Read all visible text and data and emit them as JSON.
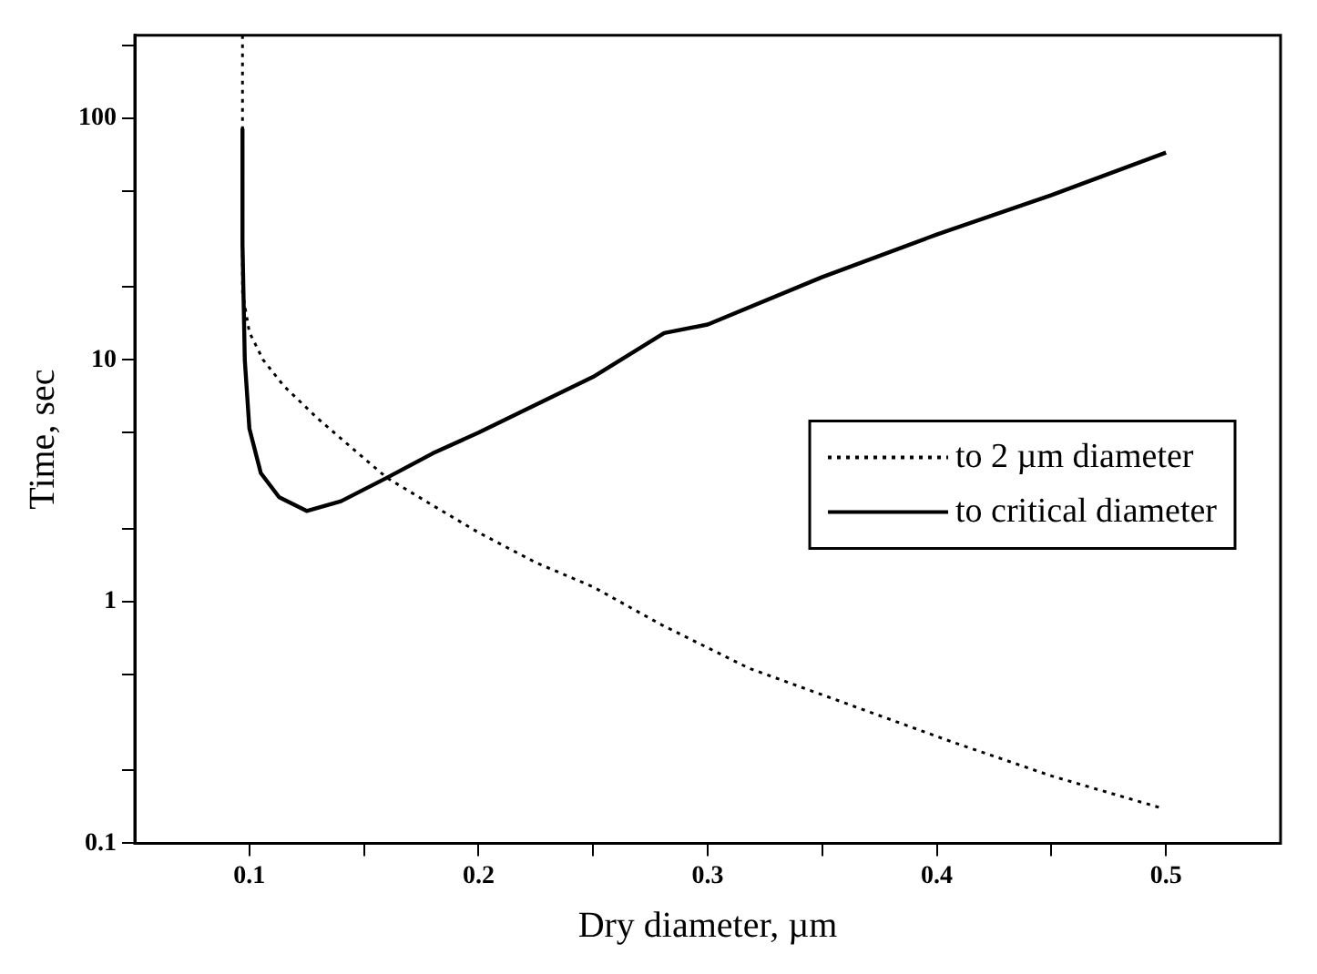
{
  "chart_data": {
    "type": "line",
    "xlabel": "Dry diameter, µm",
    "ylabel": "Time, sec",
    "log": "y",
    "grid": false,
    "legend": "right",
    "xlim": [
      0.05,
      0.55
    ],
    "ylim": [
      0.1,
      220
    ],
    "xticks": [
      0.1,
      0.2,
      0.3,
      0.4,
      0.5,
      {
        "value": 0.15,
        "label": null
      },
      {
        "value": 0.25,
        "label": null
      },
      {
        "value": 0.35,
        "label": null
      },
      {
        "value": 0.45,
        "label": null
      }
    ],
    "yticks": [
      0.1,
      1,
      10,
      100,
      {
        "value": 0.2,
        "label": null
      },
      {
        "value": 0.5,
        "label": null
      },
      {
        "value": 2,
        "label": null
      },
      {
        "value": 5,
        "label": null
      },
      {
        "value": 20,
        "label": null
      },
      {
        "value": 50,
        "label": null
      },
      {
        "value": 200,
        "label": null
      }
    ],
    "series": [
      {
        "name": "to 2 µm diameter",
        "color": "#000000",
        "line_style": "dotted",
        "x": [
          0.097,
          0.097,
          0.1,
          0.106,
          0.115,
          0.13,
          0.145,
          0.16,
          0.18,
          0.2,
          0.225,
          0.25,
          0.28,
          0.318,
          0.36,
          0.406,
          0.45,
          0.499
        ],
        "values": [
          220,
          19,
          13,
          10,
          7.8,
          5.7,
          4.3,
          3.25,
          2.5,
          1.93,
          1.45,
          1.15,
          0.8,
          0.53,
          0.38,
          0.264,
          0.19,
          0.139
        ]
      },
      {
        "name": "to critical diameter",
        "color": "#000000",
        "line_style": "solid",
        "x": [
          0.097,
          0.097,
          0.098,
          0.1,
          0.105,
          0.113,
          0.125,
          0.14,
          0.16,
          0.18,
          0.2,
          0.25,
          0.281,
          0.3,
          0.35,
          0.4,
          0.45,
          0.5
        ],
        "values": [
          90,
          30,
          10,
          5.2,
          3.4,
          2.7,
          2.37,
          2.6,
          3.25,
          4.1,
          5.0,
          8.5,
          12.9,
          14,
          22,
          33,
          48,
          72
        ]
      }
    ]
  }
}
